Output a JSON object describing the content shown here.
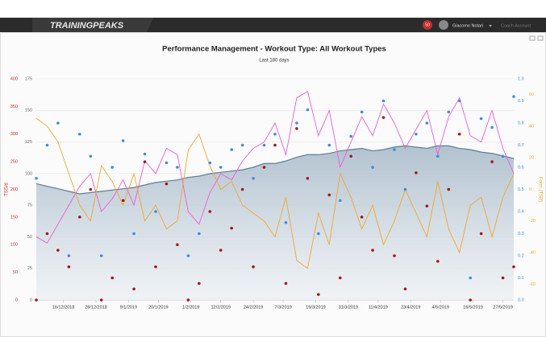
{
  "header": {
    "logo": "TRAININGPEAKS",
    "badge": "50",
    "user": "Giacomo Notari",
    "account": "Coach Account"
  },
  "chart_data": {
    "type": "line",
    "title": "Performance Management - Workout Type: All Workout Types",
    "subtitle": "Last 180 days",
    "grid": true,
    "x": [
      "6/12/2018",
      "10/12/2018",
      "14/12/2018",
      "18/12/2018",
      "22/12/2018",
      "26/12/2018",
      "30/12/2018",
      "3/1/2019",
      "7/1/2019",
      "11/1/2019",
      "15/1/2019",
      "19/1/2019",
      "23/1/2019",
      "27/1/2019",
      "31/1/2019",
      "4/2/2019",
      "8/2/2019",
      "12/2/2019",
      "16/2/2019",
      "20/2/2019",
      "24/2/2019",
      "28/2/2019",
      "4/3/2019",
      "8/3/2019",
      "12/3/2019",
      "16/3/2019",
      "20/3/2019",
      "24/3/2019",
      "28/3/2019",
      "1/4/2019",
      "5/4/2019",
      "9/4/2019",
      "13/4/2019",
      "17/4/2019",
      "21/4/2019",
      "25/4/2019",
      "29/4/2019",
      "3/5/2019",
      "7/5/2019",
      "11/5/2019",
      "15/5/2019",
      "19/5/2019",
      "23/5/2019",
      "27/5/2019",
      "31/5/2019"
    ],
    "xticks": [
      "16/12/2018",
      "28/12/2018",
      "9/1/2019",
      "20/1/2019",
      "1/2/2019",
      "12/2/2019",
      "24/2/2019",
      "7/3/2019",
      "19/3/2019",
      "31/3/2019",
      "11/4/2019",
      "23/4/2019",
      "4/5/2019",
      "16/5/2019",
      "27/5/2019"
    ],
    "axes": [
      {
        "label": "TSS/d",
        "color": "#c0302b",
        "lim": [
          0,
          400
        ],
        "ticks": [
          0,
          50,
          100,
          150,
          200,
          250,
          300,
          350,
          400
        ]
      },
      {
        "color": "#666666",
        "lim": [
          0,
          175
        ],
        "ticks": [
          0,
          25,
          50,
          75,
          100,
          125,
          150,
          175
        ]
      },
      {
        "color": "#3a8de0",
        "lim": [
          0,
          1
        ],
        "ticks": [
          {
            "value": 0,
            "label": "0.0"
          },
          0.1,
          0.2,
          0.3,
          0.4,
          0.5,
          0.6,
          0.7,
          0.8,
          0.9,
          {
            "value": 1,
            "label": "1.0"
          }
        ]
      },
      {
        "label": "Form (TSB)",
        "color": "#f0a830",
        "lim": [
          -70,
          70
        ],
        "ticks": [
          -60,
          -40,
          -20,
          0,
          20,
          40,
          60
        ]
      }
    ],
    "series": [
      {
        "kind": "area",
        "axis": 1,
        "color": "#5d7d95",
        "values": [
          92,
          90,
          88,
          86,
          84,
          85,
          86,
          87,
          88,
          89,
          91,
          93,
          94,
          95,
          97,
          98,
          100,
          101,
          102,
          103,
          105,
          108,
          108,
          110,
          113,
          115,
          115,
          116,
          118,
          119,
          120,
          118,
          119,
          121,
          122,
          121,
          120,
          122,
          122,
          120,
          119,
          117,
          116,
          114,
          112
        ]
      },
      {
        "kind": "line",
        "axis": 1,
        "color": "#e85ed8",
        "values": [
          50,
          45,
          60,
          75,
          90,
          100,
          70,
          80,
          95,
          75,
          110,
          100,
          120,
          115,
          70,
          60,
          85,
          100,
          95,
          110,
          120,
          125,
          140,
          115,
          160,
          165,
          130,
          150,
          105,
          125,
          145,
          130,
          155,
          140,
          120,
          135,
          150,
          115,
          145,
          160,
          130,
          125,
          150,
          120,
          100
        ]
      },
      {
        "kind": "line",
        "axis": 3,
        "color": "#f0a830",
        "values": [
          45,
          40,
          30,
          10,
          -10,
          -20,
          15,
          5,
          -10,
          10,
          -20,
          -10,
          -25,
          -20,
          25,
          35,
          15,
          0,
          5,
          -10,
          -15,
          -20,
          -30,
          -5,
          -45,
          -50,
          -15,
          -35,
          10,
          -5,
          -25,
          -10,
          -35,
          -20,
          0,
          -15,
          -30,
          5,
          -25,
          -40,
          -10,
          -5,
          -30,
          -5,
          10
        ]
      },
      {
        "kind": "scatter",
        "axis": 0,
        "color": "#a3141c",
        "values": [
          0,
          120,
          90,
          60,
          150,
          200,
          0,
          40,
          180,
          20,
          250,
          60,
          210,
          100,
          0,
          30,
          160,
          90,
          130,
          200,
          60,
          240,
          280,
          30,
          310,
          220,
          10,
          190,
          40,
          260,
          150,
          90,
          330,
          80,
          20,
          230,
          170,
          70,
          200,
          300,
          0,
          120,
          250,
          40,
          60
        ]
      },
      {
        "kind": "scatter",
        "axis": 2,
        "color": "#3a8de0",
        "values": [
          0.55,
          0.7,
          0.8,
          0.2,
          0.75,
          0.65,
          0.2,
          0.6,
          0.72,
          0.3,
          0.66,
          0.4,
          0.62,
          0.6,
          0.2,
          0.3,
          0.62,
          0.6,
          0.68,
          0.7,
          0.55,
          0.7,
          0.75,
          0.35,
          0.8,
          0.86,
          0.3,
          0.7,
          0.45,
          0.74,
          0.85,
          0.6,
          0.9,
          0.68,
          0.5,
          0.75,
          0.8,
          0.65,
          0.85,
          0.9,
          0.1,
          0.82,
          0.78,
          0.65,
          0.92
        ]
      }
    ]
  }
}
